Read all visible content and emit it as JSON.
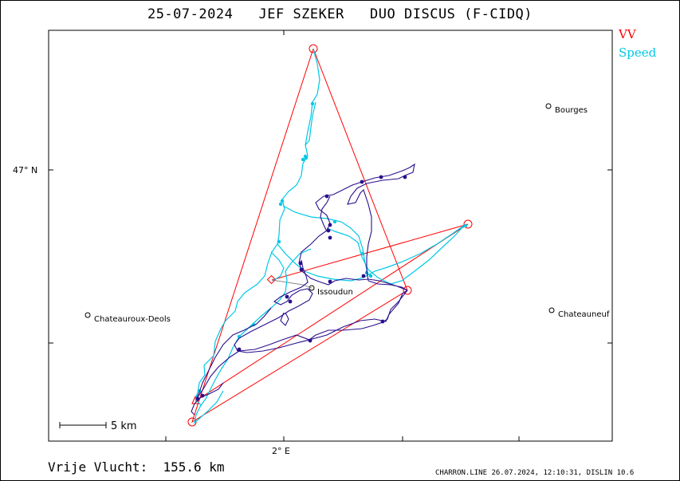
{
  "header": {
    "title": "25-07-2024   JEF SZEKER   DUO DISCUS (F-CIDQ)"
  },
  "legend": {
    "vv_label": "VV",
    "speed_label": "Speed",
    "vv_color": "#ff0000",
    "speed_color": "#00c8e6",
    "track_color": "#2a0f8c"
  },
  "map": {
    "lat_label": "47° N",
    "lon_label": "2° E",
    "scale_label": "5 km",
    "places": [
      {
        "name": "Bourges"
      },
      {
        "name": "Chateauroux-Deols"
      },
      {
        "name": "Issoudun"
      },
      {
        "name": "Chateauneuf"
      }
    ]
  },
  "footer": {
    "distance_text": "Vrije Vlucht:  155.6 km",
    "credits": "CHARRON.LINE 26.07.2024, 12:10:31, DISLIN 10.6"
  }
}
